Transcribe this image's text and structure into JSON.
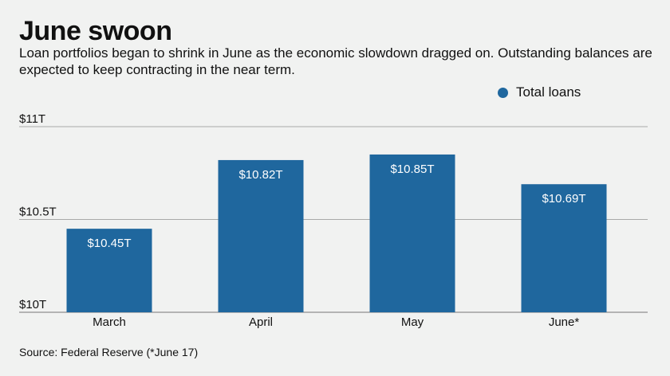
{
  "title": "June swoon",
  "subtitle": "Loan portfolios began to shrink in June as the economic slowdown dragged on. Outstanding balances are expected to keep contracting in the near term.",
  "source": "Source: Federal Reserve (*June 17)",
  "colors": {
    "bar": "#1f679e",
    "label": "#ffffff",
    "grid": "#a9a9a9",
    "background": "#f1f2f1"
  },
  "chart_data": {
    "type": "bar",
    "categories": [
      "March",
      "April",
      "May",
      "June*"
    ],
    "series": [
      {
        "name": "Total loans",
        "values": [
          10.45,
          10.82,
          10.85,
          10.69
        ]
      }
    ],
    "data_labels": [
      "$10.45T",
      "$10.82T",
      "$10.85T",
      "$10.69T"
    ],
    "ylim": [
      10,
      11
    ],
    "yticks": [
      10,
      10.5,
      11
    ],
    "ytick_labels": [
      "$10T",
      "$10.5T",
      "$11T"
    ],
    "legend": "top-right",
    "grid": true
  }
}
